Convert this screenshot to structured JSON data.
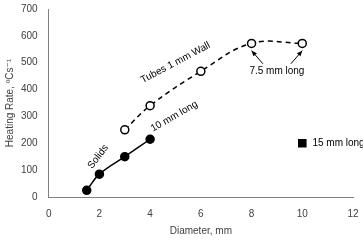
{
  "chart_data": {
    "type": "scatter",
    "x_label": "Diameter, mm",
    "y_label": "Heating Rate, ºCs⁻¹",
    "xlim": [
      0,
      12
    ],
    "xticks": [
      0,
      2,
      4,
      6,
      8,
      10,
      12
    ],
    "ylim": [
      0,
      700
    ],
    "yticks": [
      0,
      100,
      200,
      300,
      400,
      500,
      600,
      700
    ],
    "grid": false,
    "series": [
      {
        "name": "Solids",
        "color": "#000000",
        "marker": "circle",
        "line_style": "solid",
        "x": [
          1.5,
          2,
          3,
          4
        ],
        "values": [
          25,
          85,
          150,
          215
        ]
      },
      {
        "name": "Tubes 1 mm Wall",
        "color": "#000000",
        "marker": "open_circle",
        "line_style": "dashed",
        "x": [
          3,
          4,
          6,
          8,
          10
        ],
        "values": [
          250,
          340,
          468,
          572,
          572
        ]
      },
      {
        "name": "15 mm long",
        "color": "#000000",
        "marker": "square",
        "line_style": "none",
        "x": [
          10
        ],
        "values": [
          200
        ]
      }
    ],
    "annotations": [
      "10 mm long",
      "7.5 mm long"
    ]
  }
}
